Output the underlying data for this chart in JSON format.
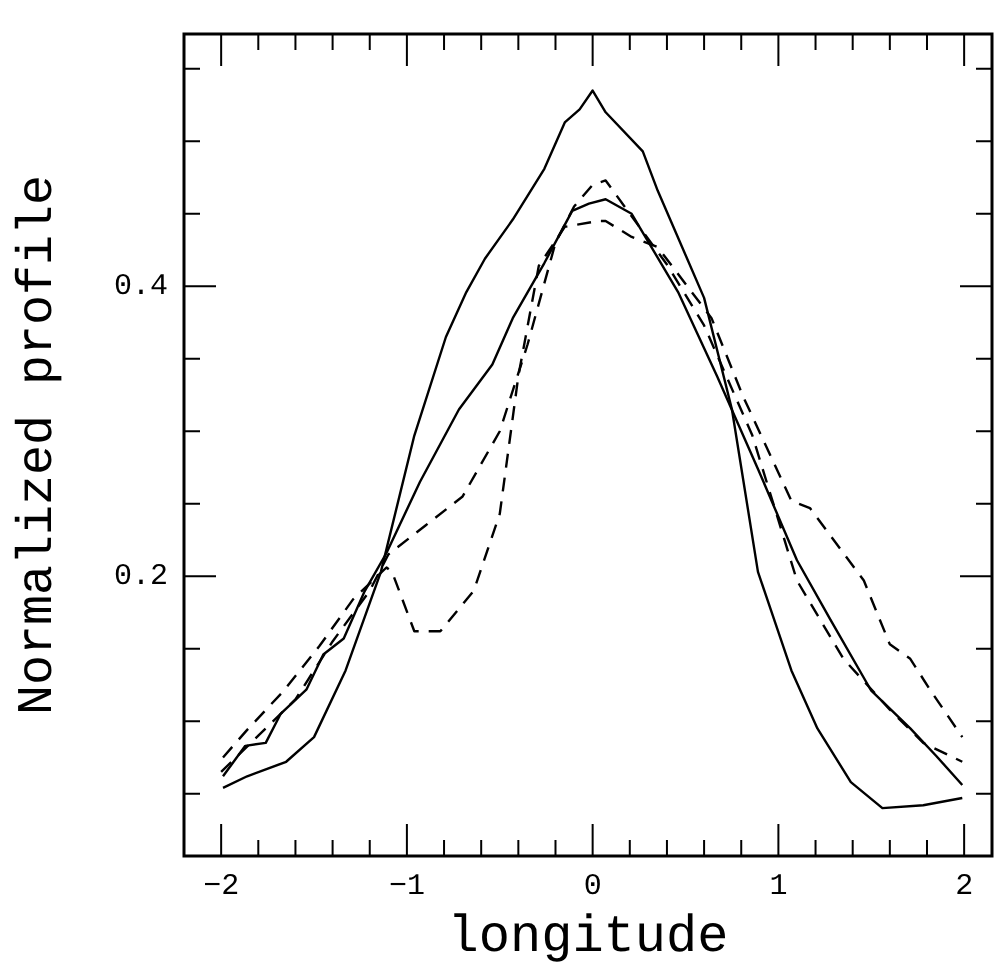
{
  "chart_data": {
    "type": "line",
    "xlabel": "longitude",
    "ylabel": "Normalized profile",
    "xlim": [
      -2.2,
      2.15
    ],
    "ylim": [
      0.007,
      0.574
    ],
    "xticks": [
      {
        "value": -2,
        "label": "−2"
      },
      {
        "value": -1.8,
        "label": null
      },
      {
        "value": -1.6,
        "label": null
      },
      {
        "value": -1.4,
        "label": null
      },
      {
        "value": -1.2,
        "label": null
      },
      {
        "value": -1,
        "label": "−1"
      },
      {
        "value": -0.8,
        "label": null
      },
      {
        "value": -0.6,
        "label": null
      },
      {
        "value": -0.4,
        "label": null
      },
      {
        "value": -0.2,
        "label": null
      },
      {
        "value": 0,
        "label": "0"
      },
      {
        "value": 0.2,
        "label": null
      },
      {
        "value": 0.4,
        "label": null
      },
      {
        "value": 0.6,
        "label": null
      },
      {
        "value": 0.8,
        "label": null
      },
      {
        "value": 1,
        "label": "1"
      },
      {
        "value": 1.2,
        "label": null
      },
      {
        "value": 1.4,
        "label": null
      },
      {
        "value": 1.6,
        "label": null
      },
      {
        "value": 1.8,
        "label": null
      },
      {
        "value": 2,
        "label": "2"
      }
    ],
    "yticks": [
      {
        "value": 0.05,
        "label": null
      },
      {
        "value": 0.1,
        "label": null
      },
      {
        "value": 0.15,
        "label": null
      },
      {
        "value": 0.2,
        "label": "0.2"
      },
      {
        "value": 0.25,
        "label": null
      },
      {
        "value": 0.3,
        "label": null
      },
      {
        "value": 0.35,
        "label": null
      },
      {
        "value": 0.4,
        "label": "0.4"
      },
      {
        "value": 0.45,
        "label": null
      },
      {
        "value": 0.5,
        "label": null
      },
      {
        "value": 0.55,
        "label": null
      }
    ],
    "grid": false,
    "legend": false,
    "marker": "none",
    "series": [
      {
        "color": "#000000",
        "line_style": "solid",
        "x": [
          -1.99,
          -1.86,
          -1.65,
          -1.5,
          -1.33,
          -1.14,
          -0.96,
          -0.79,
          -0.68,
          -0.58,
          -0.43,
          -0.26,
          -0.15,
          -0.07,
          0.0,
          0.07,
          0.27,
          0.35,
          0.6,
          0.75,
          0.89,
          1.07,
          1.21,
          1.39,
          1.56,
          1.78,
          1.99
        ],
        "values": [
          0.054,
          0.062,
          0.072,
          0.089,
          0.135,
          0.203,
          0.297,
          0.365,
          0.396,
          0.419,
          0.446,
          0.481,
          0.513,
          0.522,
          0.535,
          0.52,
          0.493,
          0.466,
          0.392,
          0.315,
          0.203,
          0.135,
          0.095,
          0.058,
          0.04,
          0.042,
          0.047
        ]
      },
      {
        "color": "#000000",
        "line_style": "solid",
        "x": [
          -1.99,
          -1.87,
          -1.76,
          -1.68,
          -1.54,
          -1.45,
          -1.34,
          -1.23,
          -1.11,
          -0.93,
          -0.72,
          -0.54,
          -0.43,
          -0.26,
          -0.11,
          -0.02,
          0.07,
          0.21,
          0.46,
          0.67,
          0.89,
          1.1,
          1.28,
          1.5,
          1.71,
          1.85,
          1.99
        ],
        "values": [
          0.062,
          0.083,
          0.085,
          0.105,
          0.122,
          0.146,
          0.157,
          0.189,
          0.216,
          0.265,
          0.315,
          0.346,
          0.378,
          0.416,
          0.452,
          0.457,
          0.46,
          0.45,
          0.396,
          0.338,
          0.274,
          0.211,
          0.17,
          0.121,
          0.095,
          0.076,
          0.056
        ]
      },
      {
        "color": "#000000",
        "line_style": "dashed",
        "x": [
          -2,
          -1.8,
          -1.6,
          -1.4,
          -1.2,
          -1.1,
          -0.9,
          -0.7,
          -0.5,
          -0.35,
          -0.2,
          -0.1,
          0,
          0.07,
          0.2,
          0.4,
          0.6,
          0.86,
          1.1,
          1.35,
          1.6,
          1.78,
          1.99
        ],
        "values": [
          0.065,
          0.09,
          0.115,
          0.155,
          0.19,
          0.215,
          0.235,
          0.255,
          0.3,
          0.36,
          0.43,
          0.455,
          0.47,
          0.473,
          0.45,
          0.415,
          0.373,
          0.297,
          0.197,
          0.143,
          0.108,
          0.085,
          0.072
        ]
      },
      {
        "color": "#000000",
        "line_style": "dashed",
        "x": [
          -1.99,
          -1.86,
          -1.67,
          -1.47,
          -1.29,
          -1.11,
          -1.08,
          -0.96,
          -0.82,
          -0.64,
          -0.5,
          -0.4,
          -0.29,
          -0.15,
          0.03,
          0.07,
          0.21,
          0.35,
          0.64,
          0.81,
          1.07,
          1.17,
          1.46,
          1.6,
          1.71,
          1.82,
          1.99
        ],
        "values": [
          0.075,
          0.094,
          0.12,
          0.152,
          0.184,
          0.206,
          0.203,
          0.162,
          0.162,
          0.19,
          0.243,
          0.338,
          0.414,
          0.441,
          0.445,
          0.445,
          0.434,
          0.427,
          0.378,
          0.324,
          0.252,
          0.247,
          0.197,
          0.153,
          0.143,
          0.121,
          0.089
        ]
      }
    ]
  }
}
